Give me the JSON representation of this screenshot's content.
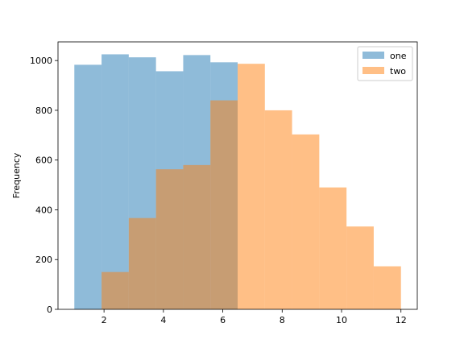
{
  "chart_data": {
    "type": "bar",
    "subtype": "overlapping histogram",
    "title": "",
    "xlabel": "",
    "ylabel": "Frequency",
    "xlim": [
      0.45,
      12.55
    ],
    "ylim": [
      0,
      1075
    ],
    "grid": false,
    "legend_position": "top-right",
    "xticks": [
      2,
      4,
      6,
      8,
      10,
      12
    ],
    "yticks": [
      0,
      200,
      400,
      600,
      800,
      1000
    ],
    "series": [
      {
        "name": "one",
        "color": "#1f77b4",
        "opacity": 0.5,
        "bins": [
          {
            "x0": 1.0,
            "x1": 1.917,
            "value": 983
          },
          {
            "x0": 1.917,
            "x1": 2.833,
            "value": 1025
          },
          {
            "x0": 2.833,
            "x1": 3.75,
            "value": 1013
          },
          {
            "x0": 3.75,
            "x1": 4.667,
            "value": 957
          },
          {
            "x0": 4.667,
            "x1": 5.583,
            "value": 1022
          },
          {
            "x0": 5.583,
            "x1": 6.5,
            "value": 993
          }
        ]
      },
      {
        "name": "two",
        "color": "#ff7f0e",
        "opacity": 0.5,
        "bins": [
          {
            "x0": 1.917,
            "x1": 2.833,
            "value": 150
          },
          {
            "x0": 2.833,
            "x1": 3.75,
            "value": 367
          },
          {
            "x0": 3.75,
            "x1": 4.667,
            "value": 563
          },
          {
            "x0": 4.667,
            "x1": 5.583,
            "value": 580
          },
          {
            "x0": 5.583,
            "x1": 6.5,
            "value": 840
          },
          {
            "x0": 6.5,
            "x1": 7.417,
            "value": 987
          },
          {
            "x0": 7.417,
            "x1": 8.333,
            "value": 800
          },
          {
            "x0": 8.333,
            "x1": 9.25,
            "value": 703
          },
          {
            "x0": 9.25,
            "x1": 10.167,
            "value": 490
          },
          {
            "x0": 10.167,
            "x1": 11.083,
            "value": 333
          },
          {
            "x0": 11.083,
            "x1": 12.0,
            "value": 173
          }
        ]
      }
    ]
  }
}
